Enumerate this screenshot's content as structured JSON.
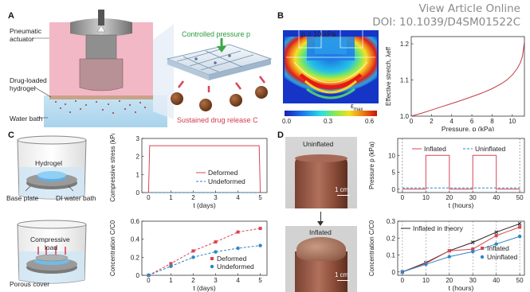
{
  "watermark": {
    "line1": "View Article Online",
    "line2": "DOI: 10.1039/D4SM01522C"
  },
  "panel_labels": {
    "a": "A",
    "b": "B",
    "c": "C",
    "d": "D"
  },
  "panel_a": {
    "pneumatic": "Pneumatic",
    "actuator": "actuator",
    "drug_loaded": "Drug-loaded",
    "hydrogel": "hydrogel",
    "water_bath": "Water bath",
    "controlled_pressure": "Controlled pressure p",
    "sustained_release": "Sustained drug release C"
  },
  "panel_b": {
    "pressure_note": "p = 10 kPa",
    "cbar_label": "ε",
    "cbar_sub": "max",
    "cbar_ticks": [
      "0.0",
      "0.3",
      "0.6"
    ]
  },
  "panel_c": {
    "hydrogel": "Hydrogel",
    "base_plate": "Base plate",
    "di_water": "DI water bath",
    "compressive": "Compressive",
    "load": "load",
    "porous_cover": "Porous cover"
  },
  "panel_d": {
    "uninflated": "Uninflated",
    "inflated": "Inflated",
    "scale_bar": "1 cm"
  },
  "colors": {
    "deformed": "#d94552",
    "undeformed": "#2f86c3",
    "uninflated_blue": "#2f86c3",
    "theory": "#222222",
    "curve_red": "#c23a44",
    "green": "#3aa845"
  },
  "chart_data": [
    {
      "id": "stretch",
      "type": "line",
      "xlabel": "Pressure, p (kPa)",
      "ylabel": "Effective stretch, λeff",
      "xlim": [
        0,
        11.2
      ],
      "ylim": [
        1.0,
        1.22
      ],
      "xticks": [
        0,
        2,
        4,
        6,
        8,
        10
      ],
      "yticks": [
        1.0,
        1.1,
        1.2
      ],
      "series": [
        {
          "x": [
            0,
            1,
            2,
            3,
            4,
            5,
            6,
            7,
            8,
            9,
            9.5,
            10,
            10.5,
            10.8,
            11.0,
            11.2
          ],
          "y": [
            1.0,
            1.008,
            1.017,
            1.026,
            1.035,
            1.044,
            1.054,
            1.064,
            1.076,
            1.091,
            1.101,
            1.114,
            1.132,
            1.148,
            1.165,
            1.205
          ]
        }
      ]
    },
    {
      "id": "stress",
      "type": "line",
      "xlabel": "t (days)",
      "ylabel": "Compressive stress (kPa)",
      "xlim": [
        -0.3,
        5.3
      ],
      "ylim": [
        0,
        3
      ],
      "xticks": [
        0,
        1,
        2,
        3,
        4,
        5
      ],
      "yticks": [
        0,
        1,
        2,
        3
      ],
      "series": [
        {
          "name": "Deformed",
          "x": [
            0,
            0.05,
            4.95,
            5
          ],
          "y": [
            0,
            2.6,
            2.6,
            0
          ]
        },
        {
          "name": "Undeformed",
          "x": [
            0,
            5
          ],
          "y": [
            0,
            0
          ]
        }
      ]
    },
    {
      "id": "concentration_c",
      "type": "scatter",
      "xlabel": "t (days)",
      "ylabel": "Concentration C/C0",
      "xlim": [
        -0.3,
        5.3
      ],
      "ylim": [
        0,
        0.6
      ],
      "xticks": [
        0,
        1,
        2,
        3,
        4,
        5
      ],
      "yticks": [
        0,
        0.2,
        0.4,
        0.6
      ],
      "series": [
        {
          "name": "Deformed",
          "x": [
            0,
            1,
            2,
            3,
            4,
            5
          ],
          "y": [
            0.0,
            0.13,
            0.27,
            0.37,
            0.48,
            0.52
          ]
        },
        {
          "name": "Undeformed",
          "x": [
            0,
            1,
            2,
            3,
            4,
            5
          ],
          "y": [
            0.0,
            0.1,
            0.2,
            0.26,
            0.3,
            0.33
          ]
        }
      ]
    },
    {
      "id": "pressure_d",
      "type": "line",
      "xlabel": "t (hours)",
      "ylabel": "Pressure p (kPa)",
      "xlim": [
        -2,
        52
      ],
      "ylim": [
        -1,
        15
      ],
      "xticks": [
        0,
        10,
        20,
        30,
        40,
        50
      ],
      "yticks": [
        0,
        5,
        10
      ],
      "series": [
        {
          "name": "Inflated",
          "x": [
            0,
            10,
            10,
            20,
            20,
            30,
            30,
            40,
            40,
            50
          ],
          "y": [
            0,
            0,
            10,
            10,
            0,
            0,
            10,
            10,
            0,
            0
          ]
        },
        {
          "name": "Uninflated",
          "x": [
            0,
            50
          ],
          "y": [
            0,
            0
          ]
        }
      ]
    },
    {
      "id": "concentration_d",
      "type": "scatter",
      "xlabel": "t (hours)",
      "ylabel": "Concentration C/C0",
      "xlim": [
        -2,
        52
      ],
      "ylim": [
        -0.02,
        0.3
      ],
      "xticks": [
        0,
        10,
        20,
        30,
        40,
        50
      ],
      "yticks": [
        0,
        0.1,
        0.2,
        0.3
      ],
      "series": [
        {
          "name": "Inflated in theory",
          "x": [
            0,
            10,
            20,
            30,
            40,
            50
          ],
          "y": [
            0,
            0.055,
            0.125,
            0.175,
            0.235,
            0.285
          ]
        },
        {
          "name": "Inflated",
          "x": [
            0,
            10,
            20,
            30,
            40,
            50
          ],
          "y": [
            0,
            0.05,
            0.125,
            0.135,
            0.215,
            0.265
          ]
        },
        {
          "name": "Uninflated",
          "x": [
            0,
            10,
            20,
            30,
            40,
            50
          ],
          "y": [
            0,
            0.045,
            0.09,
            0.12,
            0.165,
            0.21
          ]
        }
      ]
    }
  ]
}
